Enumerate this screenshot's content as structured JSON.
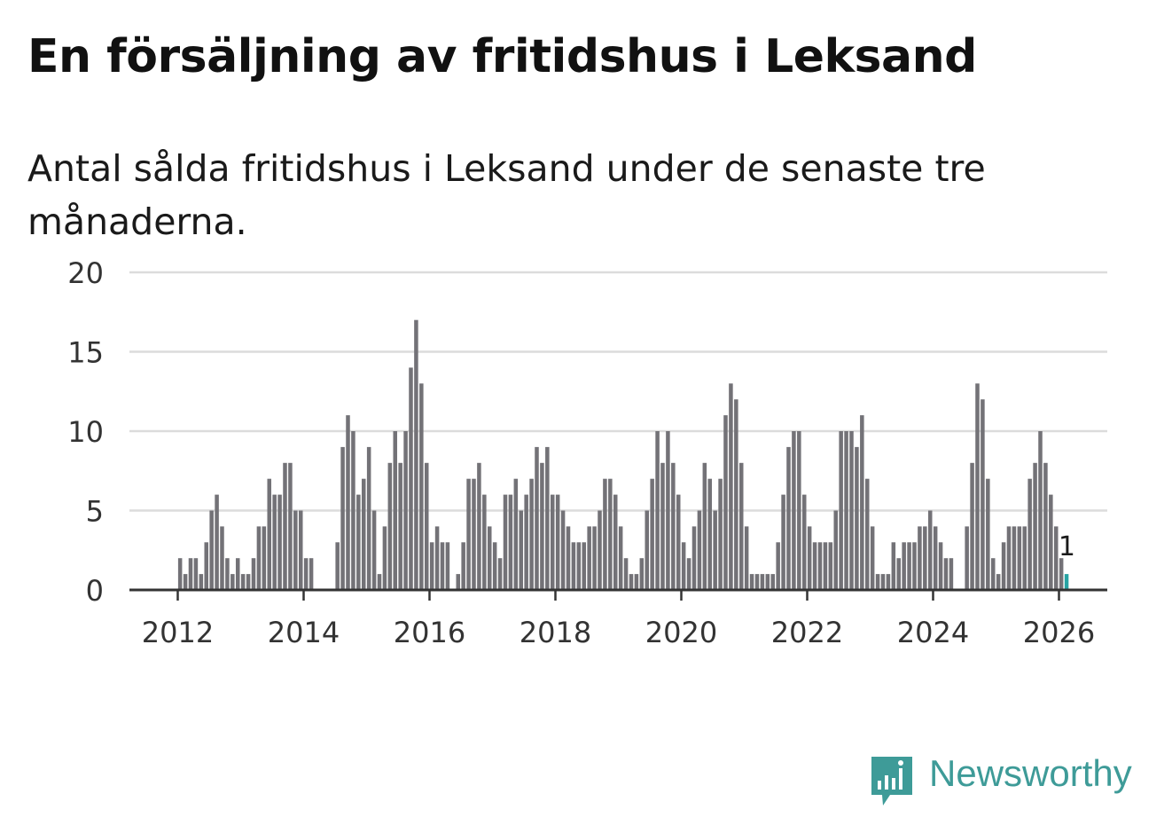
{
  "title": "En försäljning av fritidshus i Leksand",
  "subtitle": "Antal sålda fritidshus i Leksand under de senaste tre månaderna.",
  "brand": {
    "name": "Newsworthy",
    "logo_icon": "newsworthy-bar-chart-icon",
    "color": "#3e9b98"
  },
  "chart_data": {
    "type": "bar",
    "ylim": [
      0,
      20
    ],
    "yticks": [
      "0",
      "5",
      "10",
      "15",
      "20"
    ],
    "xticks": [
      "2012",
      "2014",
      "2016",
      "2018",
      "2020",
      "2022",
      "2024",
      "2026"
    ],
    "x_start_year": 2011.25,
    "bar_color": "#737277",
    "highlight_color": "#27a3a3",
    "highlight_label": "1",
    "values": [
      0,
      0,
      0,
      0,
      0,
      0,
      0,
      0,
      0,
      2,
      1,
      2,
      2,
      1,
      3,
      5,
      6,
      4,
      2,
      1,
      2,
      1,
      1,
      2,
      4,
      4,
      7,
      6,
      6,
      8,
      8,
      5,
      5,
      2,
      2,
      0,
      0,
      0,
      0,
      3,
      9,
      11,
      10,
      6,
      7,
      9,
      5,
      1,
      4,
      8,
      10,
      8,
      10,
      14,
      17,
      13,
      8,
      3,
      4,
      3,
      3,
      0,
      1,
      3,
      7,
      7,
      8,
      6,
      4,
      3,
      2,
      6,
      6,
      7,
      5,
      6,
      7,
      9,
      8,
      9,
      6,
      6,
      5,
      4,
      3,
      3,
      3,
      4,
      4,
      5,
      7,
      7,
      6,
      4,
      2,
      1,
      1,
      2,
      5,
      7,
      10,
      8,
      10,
      8,
      6,
      3,
      2,
      4,
      5,
      8,
      7,
      5,
      7,
      11,
      13,
      12,
      8,
      4,
      1,
      1,
      1,
      1,
      1,
      3,
      6,
      9,
      10,
      10,
      6,
      4,
      3,
      3,
      3,
      3,
      5,
      10,
      10,
      10,
      9,
      11,
      7,
      4,
      1,
      1,
      1,
      3,
      2,
      3,
      3,
      3,
      4,
      4,
      5,
      4,
      3,
      2,
      2,
      0,
      0,
      4,
      8,
      13,
      12,
      7,
      2,
      1,
      3,
      4,
      4,
      4,
      4,
      7,
      8,
      10,
      8,
      6,
      4,
      2,
      1
    ]
  }
}
